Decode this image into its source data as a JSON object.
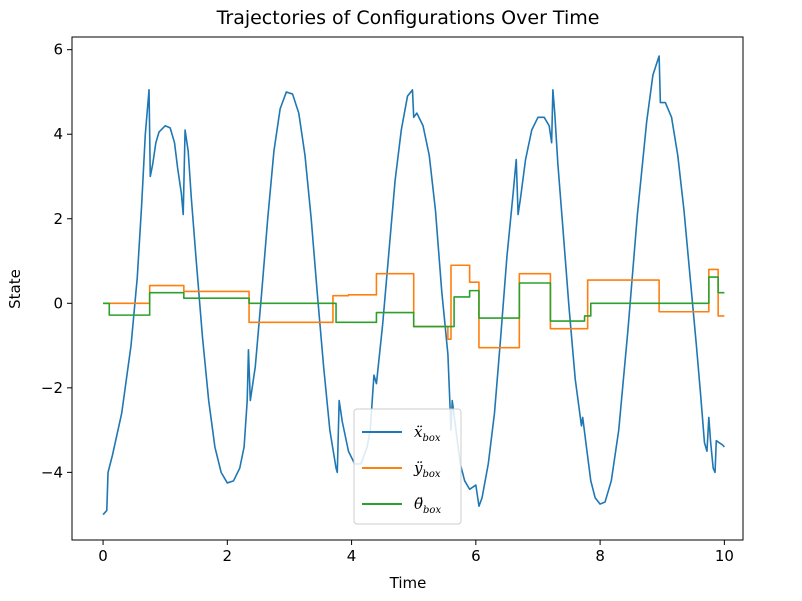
{
  "chart_data": {
    "type": "line",
    "title": "Trajectories of Configurations Over Time",
    "xlabel": "Time",
    "ylabel": "State",
    "xlim": [
      -0.5,
      10.3
    ],
    "ylim": [
      -5.6,
      6.3
    ],
    "xticks": [
      0,
      2,
      4,
      6,
      8,
      10
    ],
    "xtick_labels": [
      "0",
      "2",
      "4",
      "6",
      "8",
      "10"
    ],
    "yticks": [
      -4,
      -2,
      0,
      2,
      4,
      6
    ],
    "ytick_labels": [
      "−4",
      "−2",
      "0",
      "2",
      "4",
      "6"
    ],
    "grid": false,
    "legend": {
      "placement": "lower-center"
    },
    "series": [
      {
        "name": "box",
        "legend_symbol": "ẍ",
        "legend_sub": "box",
        "color": "#1f77b4",
        "style": "line",
        "points": [
          [
            0.0,
            -5.0
          ],
          [
            0.06,
            -4.9
          ],
          [
            0.08,
            -4.0
          ],
          [
            0.15,
            -3.6
          ],
          [
            0.3,
            -2.6
          ],
          [
            0.45,
            -1.0
          ],
          [
            0.55,
            0.6
          ],
          [
            0.62,
            2.3
          ],
          [
            0.68,
            4.0
          ],
          [
            0.74,
            5.05
          ],
          [
            0.76,
            3.0
          ],
          [
            0.8,
            3.3
          ],
          [
            0.85,
            3.8
          ],
          [
            0.9,
            4.05
          ],
          [
            1.0,
            4.2
          ],
          [
            1.08,
            4.15
          ],
          [
            1.15,
            3.8
          ],
          [
            1.2,
            3.2
          ],
          [
            1.26,
            2.6
          ],
          [
            1.29,
            2.1
          ],
          [
            1.32,
            4.1
          ],
          [
            1.37,
            3.6
          ],
          [
            1.42,
            2.5
          ],
          [
            1.5,
            1.0
          ],
          [
            1.6,
            -0.8
          ],
          [
            1.7,
            -2.3
          ],
          [
            1.8,
            -3.4
          ],
          [
            1.9,
            -4.0
          ],
          [
            2.0,
            -4.25
          ],
          [
            2.1,
            -4.2
          ],
          [
            2.2,
            -3.9
          ],
          [
            2.27,
            -3.4
          ],
          [
            2.32,
            -2.3
          ],
          [
            2.34,
            -1.1
          ],
          [
            2.37,
            -2.3
          ],
          [
            2.45,
            -1.5
          ],
          [
            2.55,
            0.2
          ],
          [
            2.65,
            2.0
          ],
          [
            2.75,
            3.6
          ],
          [
            2.85,
            4.6
          ],
          [
            2.95,
            5.0
          ],
          [
            3.05,
            4.95
          ],
          [
            3.15,
            4.5
          ],
          [
            3.25,
            3.5
          ],
          [
            3.35,
            2.0
          ],
          [
            3.45,
            0.2
          ],
          [
            3.55,
            -1.5
          ],
          [
            3.65,
            -3.0
          ],
          [
            3.75,
            -3.9
          ],
          [
            3.77,
            -4.0
          ],
          [
            3.8,
            -2.3
          ],
          [
            3.85,
            -2.8
          ],
          [
            3.95,
            -3.5
          ],
          [
            4.05,
            -3.8
          ],
          [
            4.15,
            -3.8
          ],
          [
            4.25,
            -3.4
          ],
          [
            4.3,
            -3.0
          ],
          [
            4.36,
            -1.7
          ],
          [
            4.4,
            -1.9
          ],
          [
            4.5,
            -0.5
          ],
          [
            4.6,
            1.2
          ],
          [
            4.7,
            2.9
          ],
          [
            4.8,
            4.1
          ],
          [
            4.9,
            4.9
          ],
          [
            4.98,
            5.05
          ],
          [
            5.0,
            4.4
          ],
          [
            5.05,
            4.5
          ],
          [
            5.15,
            4.2
          ],
          [
            5.25,
            3.5
          ],
          [
            5.35,
            2.2
          ],
          [
            5.45,
            0.3
          ],
          [
            5.55,
            -1.2
          ],
          [
            5.6,
            -3.0
          ],
          [
            5.62,
            -2.3
          ],
          [
            5.68,
            -3.0
          ],
          [
            5.75,
            -3.8
          ],
          [
            5.82,
            -4.2
          ],
          [
            5.9,
            -4.4
          ],
          [
            6.0,
            -4.3
          ],
          [
            6.05,
            -4.8
          ],
          [
            6.1,
            -4.6
          ],
          [
            6.2,
            -3.8
          ],
          [
            6.3,
            -2.6
          ],
          [
            6.4,
            -0.8
          ],
          [
            6.5,
            1.1
          ],
          [
            6.6,
            2.6
          ],
          [
            6.65,
            3.4
          ],
          [
            6.68,
            2.1
          ],
          [
            6.72,
            2.5
          ],
          [
            6.8,
            3.4
          ],
          [
            6.9,
            4.1
          ],
          [
            7.0,
            4.4
          ],
          [
            7.1,
            4.4
          ],
          [
            7.18,
            4.2
          ],
          [
            7.22,
            3.8
          ],
          [
            7.24,
            5.05
          ],
          [
            7.27,
            4.5
          ],
          [
            7.32,
            3.3
          ],
          [
            7.4,
            1.8
          ],
          [
            7.5,
            -0.1
          ],
          [
            7.6,
            -1.8
          ],
          [
            7.7,
            -2.9
          ],
          [
            7.72,
            -2.7
          ],
          [
            7.78,
            -3.4
          ],
          [
            7.85,
            -4.2
          ],
          [
            7.92,
            -4.6
          ],
          [
            8.0,
            -4.75
          ],
          [
            8.08,
            -4.7
          ],
          [
            8.18,
            -4.2
          ],
          [
            8.3,
            -3.0
          ],
          [
            8.45,
            -0.6
          ],
          [
            8.6,
            2.1
          ],
          [
            8.75,
            4.3
          ],
          [
            8.85,
            5.4
          ],
          [
            8.95,
            5.85
          ],
          [
            8.97,
            4.75
          ],
          [
            9.05,
            4.75
          ],
          [
            9.15,
            4.4
          ],
          [
            9.25,
            3.5
          ],
          [
            9.35,
            2.2
          ],
          [
            9.45,
            0.6
          ],
          [
            9.55,
            -1.0
          ],
          [
            9.62,
            -2.2
          ],
          [
            9.68,
            -3.3
          ],
          [
            9.72,
            -3.5
          ],
          [
            9.75,
            -2.7
          ],
          [
            9.78,
            -3.3
          ],
          [
            9.82,
            -3.9
          ],
          [
            9.85,
            -4.0
          ],
          [
            9.87,
            -3.25
          ],
          [
            9.92,
            -3.3
          ],
          [
            9.97,
            -3.35
          ],
          [
            10.0,
            -3.4
          ]
        ]
      },
      {
        "name": "box",
        "legend_symbol": "ÿ",
        "legend_sub": "box",
        "color": "#ff7f0e",
        "style": "step",
        "points": [
          [
            0.0,
            0.0
          ],
          [
            0.75,
            0.42
          ],
          [
            1.3,
            0.28
          ],
          [
            2.35,
            -0.45
          ],
          [
            3.7,
            0.18
          ],
          [
            3.95,
            0.2
          ],
          [
            4.4,
            0.7
          ],
          [
            5.0,
            -0.55
          ],
          [
            5.55,
            -0.85
          ],
          [
            5.6,
            0.9
          ],
          [
            5.9,
            0.5
          ],
          [
            6.05,
            -1.05
          ],
          [
            6.7,
            0.7
          ],
          [
            7.2,
            -0.6
          ],
          [
            7.8,
            0.55
          ],
          [
            8.95,
            -0.2
          ],
          [
            9.75,
            0.8
          ],
          [
            9.9,
            -0.3
          ],
          [
            10.0,
            -0.3
          ]
        ]
      },
      {
        "name": "box",
        "legend_symbol": "θ̈",
        "legend_sub": "box",
        "color": "#2ca02c",
        "style": "step",
        "points": [
          [
            0.0,
            0.0
          ],
          [
            0.1,
            -0.28
          ],
          [
            0.75,
            0.25
          ],
          [
            1.3,
            0.12
          ],
          [
            2.35,
            0.0
          ],
          [
            3.75,
            -0.45
          ],
          [
            4.4,
            -0.22
          ],
          [
            5.0,
            -0.55
          ],
          [
            5.65,
            0.15
          ],
          [
            5.9,
            0.3
          ],
          [
            6.05,
            -0.35
          ],
          [
            6.7,
            0.48
          ],
          [
            7.2,
            -0.42
          ],
          [
            7.75,
            -0.3
          ],
          [
            7.85,
            0.0
          ],
          [
            9.75,
            0.62
          ],
          [
            9.9,
            0.25
          ],
          [
            10.0,
            0.25
          ]
        ]
      }
    ]
  }
}
